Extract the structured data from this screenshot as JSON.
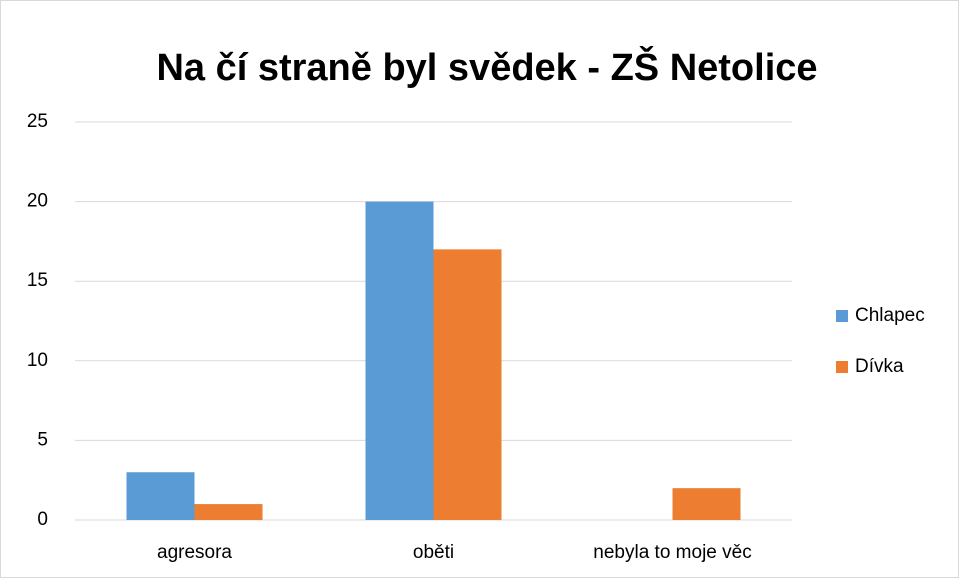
{
  "chart_data": {
    "type": "bar",
    "title": "Na čí straně byl svědek - ZŠ Netolice",
    "categories": [
      "agresora",
      "oběti",
      "nebyla to moje věc"
    ],
    "series": [
      {
        "name": "Chlapec",
        "color": "#5b9bd5",
        "values": [
          3,
          20,
          0
        ]
      },
      {
        "name": "Dívka",
        "color": "#ed7d31",
        "values": [
          1,
          17,
          2
        ]
      }
    ],
    "ylim": [
      0,
      25
    ],
    "yticks": [
      0,
      5,
      10,
      15,
      20,
      25
    ],
    "grid": true,
    "legend": "right"
  }
}
